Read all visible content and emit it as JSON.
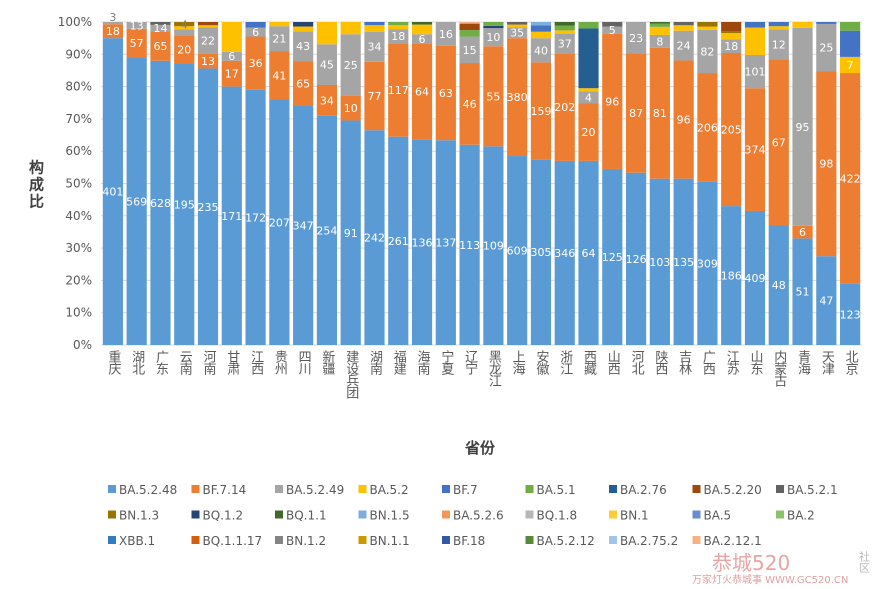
{
  "chart_data": {
    "type": "bar",
    "stacked": "percent",
    "xlabel": "省份",
    "ylabel": "构成比",
    "ylim": [
      0,
      100
    ],
    "yticks": [
      "0%",
      "10%",
      "20%",
      "30%",
      "40%",
      "50%",
      "60%",
      "70%",
      "80%",
      "90%",
      "100%"
    ],
    "grid": true,
    "legend_position": "bottom",
    "legend": [
      {
        "name": "BA.5.2.48",
        "color": "#5b9bd5"
      },
      {
        "name": "BF.7.14",
        "color": "#ed7d31"
      },
      {
        "name": "BA.5.2.49",
        "color": "#a5a5a5"
      },
      {
        "name": "BA.5.2",
        "color": "#ffc000"
      },
      {
        "name": "BF.7",
        "color": "#4472c4"
      },
      {
        "name": "BA.5.1",
        "color": "#70ad47"
      },
      {
        "name": "BA.2.76",
        "color": "#255e91"
      },
      {
        "name": "BA.5.2.20",
        "color": "#9e480e"
      },
      {
        "name": "BA.5.2.1",
        "color": "#636363"
      },
      {
        "name": "BN.1.3",
        "color": "#997300"
      },
      {
        "name": "BQ.1.2",
        "color": "#264478"
      },
      {
        "name": "BQ.1.1",
        "color": "#43682b"
      },
      {
        "name": "BN.1.5",
        "color": "#7cafdd"
      },
      {
        "name": "BA.5.2.6",
        "color": "#f1975a"
      },
      {
        "name": "BQ.1.8",
        "color": "#b7b7b7"
      },
      {
        "name": "BN.1",
        "color": "#ffcd33"
      },
      {
        "name": "BA.5",
        "color": "#698ed0"
      },
      {
        "name": "BA.2",
        "color": "#8cc168"
      },
      {
        "name": "XBB.1",
        "color": "#327dc2"
      },
      {
        "name": "BQ.1.1.17",
        "color": "#d26012"
      },
      {
        "name": "BN.1.2",
        "color": "#848484"
      },
      {
        "name": "BN.1.1",
        "color": "#cc9a00"
      },
      {
        "name": "BF.18",
        "color": "#335aa1"
      },
      {
        "name": "BA.5.2.12",
        "color": "#5a8a39"
      },
      {
        "name": "BA.2.75.2",
        "color": "#a3c4e8"
      },
      {
        "name": "BA.2.12.1",
        "color": "#f4b183"
      }
    ],
    "categories": [
      "重庆",
      "湖北",
      "广东",
      "云南",
      "河南",
      "甘肃",
      "江西",
      "贵州",
      "四川",
      "新疆",
      "建设兵团",
      "湖南",
      "福建",
      "海南",
      "宁夏",
      "辽宁",
      "黑龙江",
      "上海",
      "安徽",
      "浙江",
      "西藏",
      "山西",
      "河北",
      "陕西",
      "吉林",
      "广西",
      "江苏",
      "山东",
      "内蒙古",
      "青海",
      "天津",
      "北京"
    ],
    "bars": [
      [
        [
          "BA.5.2.48",
          95,
          "401"
        ],
        [
          "BF.7.14",
          4.3,
          "18"
        ],
        [
          "BA.5.2.49",
          0.7,
          "3"
        ]
      ],
      [
        [
          "BA.5.2.48",
          89,
          "569"
        ],
        [
          "BF.7.14",
          8.9,
          "57"
        ],
        [
          "BA.5.2.49",
          2.1,
          "13"
        ]
      ],
      [
        [
          "BA.5.2.48",
          88,
          "628"
        ],
        [
          "BF.7.14",
          9.1,
          "65"
        ],
        [
          "BA.5.2.49",
          2,
          "14"
        ],
        [
          "BA.5.2.1",
          0.9,
          ""
        ]
      ],
      [
        [
          "BA.5.2.48",
          87,
          "195"
        ],
        [
          "BF.7.14",
          8.9,
          "20"
        ],
        [
          "BA.5.2.49",
          1.8,
          "4"
        ],
        [
          "BA.5.2",
          1,
          ""
        ],
        [
          "BN.1.3",
          1.3,
          ""
        ]
      ],
      [
        [
          "BA.5.2.48",
          85.6,
          "235"
        ],
        [
          "BF.7.14",
          4.7,
          "13"
        ],
        [
          "BA.5.2.49",
          8,
          "22"
        ],
        [
          "BA.5.2",
          0.7,
          ""
        ],
        [
          "BA.5.2.20",
          1,
          ""
        ]
      ],
      [
        [
          "BA.5.2.48",
          80,
          "171"
        ],
        [
          "BF.7.14",
          8,
          "17"
        ],
        [
          "BA.5.2.49",
          2.8,
          "6"
        ],
        [
          "BA.5.2",
          9.2,
          ""
        ]
      ],
      [
        [
          "BA.5.2.48",
          79,
          "172"
        ],
        [
          "BF.7.14",
          16.5,
          "36"
        ],
        [
          "BA.5.2.49",
          2.8,
          "6"
        ],
        [
          "BF.7",
          1.7,
          ""
        ]
      ],
      [
        [
          "BA.5.2.48",
          76,
          "207"
        ],
        [
          "BF.7.14",
          15,
          "41"
        ],
        [
          "BA.5.2.49",
          7.7,
          "21"
        ],
        [
          "BA.5.2",
          1.3,
          ""
        ]
      ],
      [
        [
          "BA.5.2.48",
          74,
          "347"
        ],
        [
          "BF.7.14",
          13.9,
          "65"
        ],
        [
          "BA.5.2.49",
          9.2,
          "43"
        ],
        [
          "BA.5.2",
          1.5,
          ""
        ],
        [
          "BQ.1.2",
          1.4,
          ""
        ]
      ],
      [
        [
          "BA.5.2.48",
          71,
          "254"
        ],
        [
          "BF.7.14",
          9.5,
          "34"
        ],
        [
          "BA.5.2.49",
          12.6,
          "45"
        ],
        [
          "BA.5.2",
          6.9,
          ""
        ]
      ],
      [
        [
          "BA.5.2.48",
          69.5,
          "91"
        ],
        [
          "BF.7.14",
          7.6,
          "10"
        ],
        [
          "BA.5.2.49",
          19.1,
          "25"
        ],
        [
          "BA.5.2",
          3.8,
          ""
        ]
      ],
      [
        [
          "BA.5.2.48",
          66.5,
          "242"
        ],
        [
          "BF.7.14",
          21.2,
          "77"
        ],
        [
          "BA.5.2.49",
          9.3,
          "34"
        ],
        [
          "BA.5.2",
          2,
          ""
        ],
        [
          "BF.7",
          1,
          ""
        ]
      ],
      [
        [
          "BA.5.2.48",
          64.5,
          "261"
        ],
        [
          "BF.7.14",
          28.9,
          "117"
        ],
        [
          "BA.5.2.49",
          4.4,
          "18"
        ],
        [
          "BA.5.2",
          1.2,
          ""
        ],
        [
          "BA.5.1",
          1,
          ""
        ]
      ],
      [
        [
          "BA.5.2.48",
          63.5,
          "136"
        ],
        [
          "BF.7.14",
          29.9,
          "64"
        ],
        [
          "BA.5.2.49",
          2.8,
          "6"
        ],
        [
          "BA.5.2",
          3,
          ""
        ],
        [
          "BQ.1.1",
          0.8,
          ""
        ]
      ],
      [
        [
          "BA.5.2.48",
          63.4,
          "137"
        ],
        [
          "BF.7.14",
          29.2,
          "63"
        ],
        [
          "BA.5.2.49",
          7.4,
          "16"
        ]
      ],
      [
        [
          "BA.5.2.48",
          62,
          "113"
        ],
        [
          "BF.7.14",
          25.3,
          "46"
        ],
        [
          "BA.5.2.49",
          8.2,
          "15"
        ],
        [
          "BA.5.1",
          2,
          ""
        ],
        [
          "BA.5.2.20",
          2,
          ""
        ],
        [
          "BA.2.12.1",
          0.5,
          ""
        ]
      ],
      [
        [
          "BA.5.2.48",
          61.5,
          "109"
        ],
        [
          "BF.7.14",
          31,
          "55"
        ],
        [
          "BA.5.2.49",
          5.6,
          "10"
        ],
        [
          "BQ.1.2",
          0.7,
          ""
        ],
        [
          "BA.5.1",
          1.2,
          ""
        ]
      ],
      [
        [
          "BA.5.2.48",
          58.5,
          "609"
        ],
        [
          "BF.7.14",
          36.5,
          "380"
        ],
        [
          "BA.5.2.49",
          3.4,
          "35"
        ],
        [
          "BA.5.2",
          0.8,
          ""
        ],
        [
          "BA.5.2.1",
          0.8,
          ""
        ]
      ],
      [
        [
          "BA.5.2.48",
          57.5,
          "305"
        ],
        [
          "BF.7.14",
          30,
          "159"
        ],
        [
          "BA.5.2.49",
          7.5,
          "40"
        ],
        [
          "BA.5.2",
          2,
          ""
        ],
        [
          "BF.7",
          2,
          ""
        ],
        [
          "BN.1.5",
          1,
          ""
        ]
      ],
      [
        [
          "BA.5.2.48",
          57,
          "346"
        ],
        [
          "BF.7.14",
          33.3,
          "202"
        ],
        [
          "BA.5.2.49",
          6.1,
          "37"
        ],
        [
          "BA.5.2",
          1,
          ""
        ],
        [
          "BA.5.1",
          1.5,
          ""
        ],
        [
          "BQ.1.1",
          1.1,
          ""
        ]
      ],
      [
        [
          "BA.5.2.48",
          57,
          "64"
        ],
        [
          "BF.7.14",
          17.9,
          "20"
        ],
        [
          "BA.5.2.49",
          3.6,
          "4"
        ],
        [
          "BA.5.2",
          1,
          ""
        ],
        [
          "BA.2.76",
          18.5,
          ""
        ],
        [
          "BA.5.1",
          2,
          ""
        ]
      ],
      [
        [
          "BA.5.2.48",
          54.5,
          "125"
        ],
        [
          "BF.7.14",
          41.9,
          "96"
        ],
        [
          "BA.5.2.49",
          2.2,
          "5"
        ],
        [
          "BA.5.2.1",
          1.4,
          ""
        ]
      ],
      [
        [
          "BA.5.2.48",
          53.5,
          "126"
        ],
        [
          "BF.7.14",
          37,
          "87"
        ],
        [
          "BA.5.2.49",
          9.8,
          "23"
        ]
      ],
      [
        [
          "BA.5.2.48",
          51.5,
          "103"
        ],
        [
          "BF.7.14",
          40.5,
          "81"
        ],
        [
          "BA.5.2.49",
          4,
          "8"
        ],
        [
          "BA.5.2",
          2.5,
          ""
        ],
        [
          "BA.5.1",
          1,
          ""
        ],
        [
          "BQ.1.1",
          0.5,
          ""
        ]
      ],
      [
        [
          "BA.5.2.48",
          51.5,
          "135"
        ],
        [
          "BF.7.14",
          36.6,
          "96"
        ],
        [
          "BA.5.2.49",
          9.2,
          "24"
        ],
        [
          "BA.5.2",
          1.7,
          ""
        ],
        [
          "BA.5.2.1",
          1,
          ""
        ]
      ],
      [
        [
          "BA.5.2.48",
          50.5,
          "309"
        ],
        [
          "BF.7.14",
          33.7,
          "206"
        ],
        [
          "BA.5.2.49",
          13.4,
          "82"
        ],
        [
          "BA.5.2",
          1,
          ""
        ],
        [
          "BN.1.3",
          1.4,
          ""
        ]
      ],
      [
        [
          "BA.5.2.48",
          43,
          "186"
        ],
        [
          "BF.7.14",
          47.4,
          "205"
        ],
        [
          "BA.5.2.49",
          4.2,
          "18"
        ],
        [
          "BA.5.2",
          2,
          ""
        ],
        [
          "BN.1.3",
          0.5,
          ""
        ],
        [
          "BA.5.2.20",
          2.9,
          ""
        ]
      ],
      [
        [
          "BA.5.2.48",
          41.5,
          "409"
        ],
        [
          "BF.7.14",
          38,
          "374"
        ],
        [
          "BA.5.2.49",
          10.3,
          "101"
        ],
        [
          "BA.5.2",
          8.5,
          ""
        ],
        [
          "BF.7",
          1.7,
          ""
        ]
      ],
      [
        [
          "BA.5.2.48",
          37,
          "48"
        ],
        [
          "BF.7.14",
          51.5,
          "67"
        ],
        [
          "BA.5.2.49",
          9.2,
          "12"
        ],
        [
          "BA.5.2",
          1,
          ""
        ],
        [
          "BF.7",
          1.3,
          ""
        ]
      ],
      [
        [
          "BA.5.2.48",
          33,
          "51"
        ],
        [
          "BF.7.14",
          3.9,
          "6"
        ],
        [
          "BA.5.2.49",
          61.3,
          "95"
        ],
        [
          "BA.5.2",
          1.8,
          ""
        ]
      ],
      [
        [
          "BA.5.2.48",
          27.5,
          "47"
        ],
        [
          "BF.7.14",
          57.3,
          "98"
        ],
        [
          "BA.5.2.49",
          14.6,
          "25"
        ],
        [
          "BF.7",
          0.6,
          ""
        ]
      ],
      [
        [
          "BA.5.2.48",
          19,
          "123"
        ],
        [
          "BF.7.14",
          65.2,
          "422"
        ],
        [
          "BA.5.2",
          5,
          "7"
        ],
        [
          "BF.7",
          8.1,
          ""
        ],
        [
          "BA.5.1",
          2.7,
          ""
        ]
      ]
    ]
  },
  "watermark": {
    "logo_text": "恭城520",
    "side_text": "社区",
    "tagline": "万家灯火恭城事 WWW.GC520.CN"
  }
}
